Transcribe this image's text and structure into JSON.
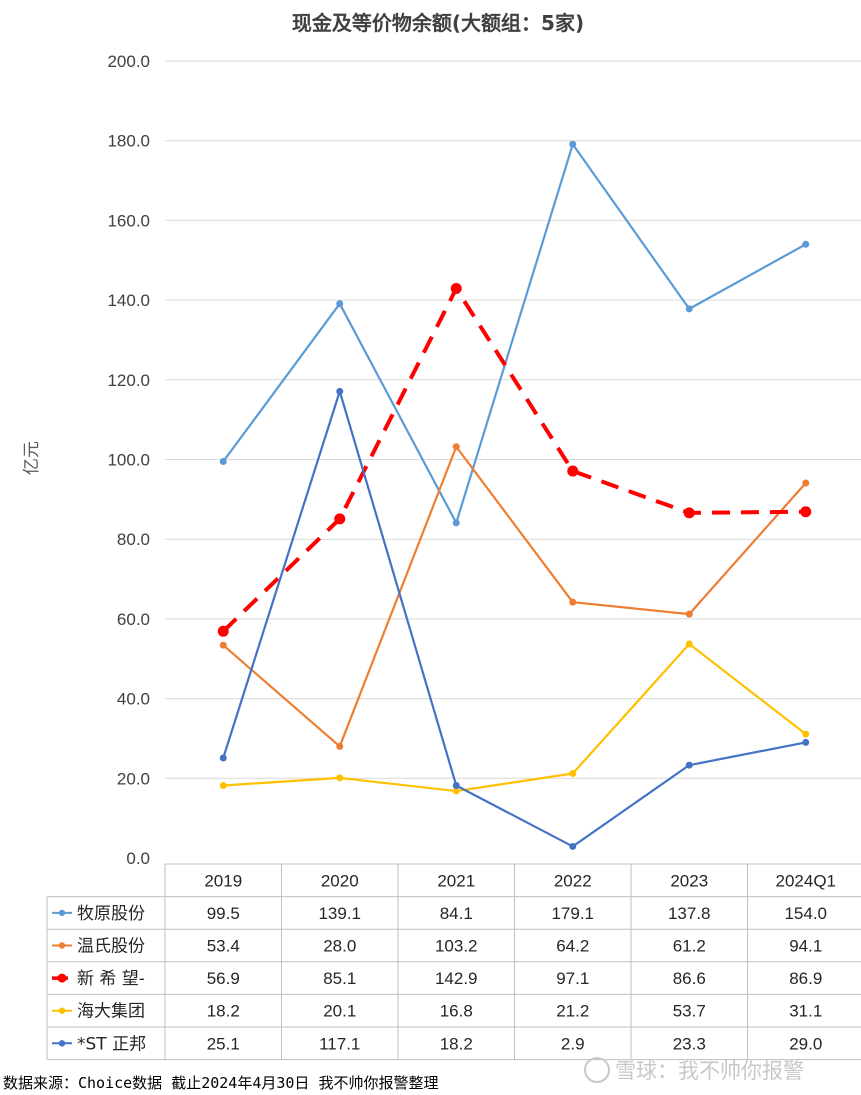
{
  "chart_data": {
    "type": "line",
    "title": "现金及等价物余额(大额组：5家)",
    "ylabel": "亿元",
    "ylim": [
      0,
      200
    ],
    "yticks": [
      "0.0",
      "20.0",
      "40.0",
      "60.0",
      "80.0",
      "100.0",
      "120.0",
      "140.0",
      "160.0",
      "180.0",
      "200.0"
    ],
    "grid": true,
    "legend": "data-table",
    "categories": [
      "2019",
      "2020",
      "2021",
      "2022",
      "2023",
      "2024Q1"
    ],
    "series": [
      {
        "name": "牧原股份",
        "color": "#5b9bd5",
        "dashed": false,
        "values": [
          99.5,
          139.1,
          84.1,
          179.1,
          137.8,
          154.0
        ],
        "labels": [
          "99.5",
          "139.1",
          "84.1",
          "179.1",
          "137.8",
          "154.0"
        ]
      },
      {
        "name": "温氏股份",
        "color": "#ed7d31",
        "dashed": false,
        "values": [
          53.4,
          28.0,
          103.2,
          64.2,
          61.2,
          94.1
        ],
        "labels": [
          "53.4",
          "28.0",
          "103.2",
          "64.2",
          "61.2",
          "94.1"
        ]
      },
      {
        "name": "新 希 望-",
        "color": "#ff0000",
        "dashed": true,
        "values": [
          56.9,
          85.1,
          142.9,
          97.1,
          86.6,
          86.9
        ],
        "labels": [
          "56.9",
          "85.1",
          "142.9",
          "97.1",
          "86.6",
          "86.9"
        ]
      },
      {
        "name": "海大集团",
        "color": "#ffc000",
        "dashed": false,
        "values": [
          18.2,
          20.1,
          16.8,
          21.2,
          53.7,
          31.1
        ],
        "labels": [
          "18.2",
          "20.1",
          "16.8",
          "21.2",
          "53.7",
          "31.1"
        ]
      },
      {
        "name": "*ST 正邦",
        "color": "#4472c4",
        "dashed": false,
        "values": [
          25.1,
          117.1,
          18.2,
          2.9,
          23.3,
          29.0
        ],
        "labels": [
          "25.1",
          "117.1",
          "18.2",
          "2.9",
          "23.3",
          "29.0"
        ]
      }
    ]
  },
  "footer": {
    "source": "数据来源：Choice数据  截止2024年4月30日 我不帅你报警整理",
    "watermark": "雪球：我不帅你报警"
  }
}
